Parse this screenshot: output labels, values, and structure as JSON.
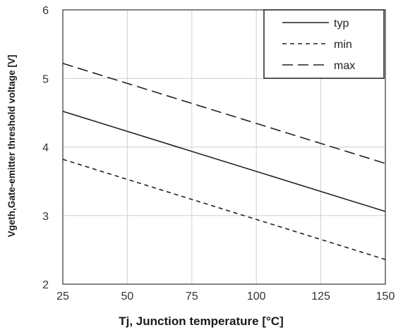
{
  "chart_data": {
    "type": "line",
    "x": [
      25,
      150
    ],
    "series": [
      {
        "name": "typ",
        "values": [
          4.52,
          3.06
        ],
        "style": "solid",
        "color": "#222222"
      },
      {
        "name": "min",
        "values": [
          3.82,
          2.36
        ],
        "style": "short-dash",
        "color": "#222222"
      },
      {
        "name": "max",
        "values": [
          5.22,
          3.76
        ],
        "style": "long-dash",
        "color": "#222222"
      }
    ],
    "xlabel": "Tj, Junction temperature [°C]",
    "ylabel": "Vgeth,Gate-emitter threshold voltage [V]",
    "xlim": [
      25,
      150
    ],
    "ylim": [
      2,
      6
    ],
    "xticks": [
      25,
      50,
      75,
      100,
      125,
      150
    ],
    "yticks": [
      2,
      3,
      4,
      5,
      6
    ],
    "grid": true,
    "legend_position": "top-right"
  }
}
